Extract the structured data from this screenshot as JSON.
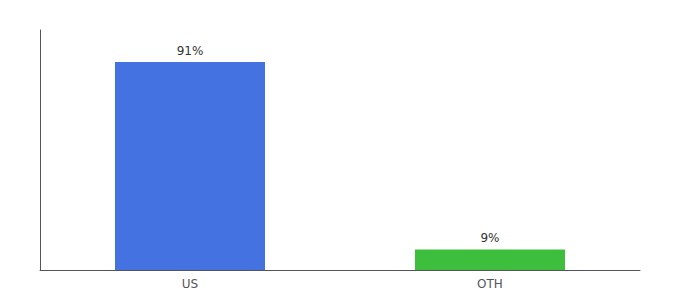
{
  "chart_data": {
    "type": "bar",
    "categories": [
      "US",
      "OTH"
    ],
    "values": [
      91,
      9
    ],
    "value_labels": [
      "91%",
      "9%"
    ],
    "colors": [
      "#4472e0",
      "#3dbf3d"
    ],
    "ylim": [
      0,
      105
    ],
    "data_labels": true,
    "tick_labels": "x",
    "grid": false
  }
}
